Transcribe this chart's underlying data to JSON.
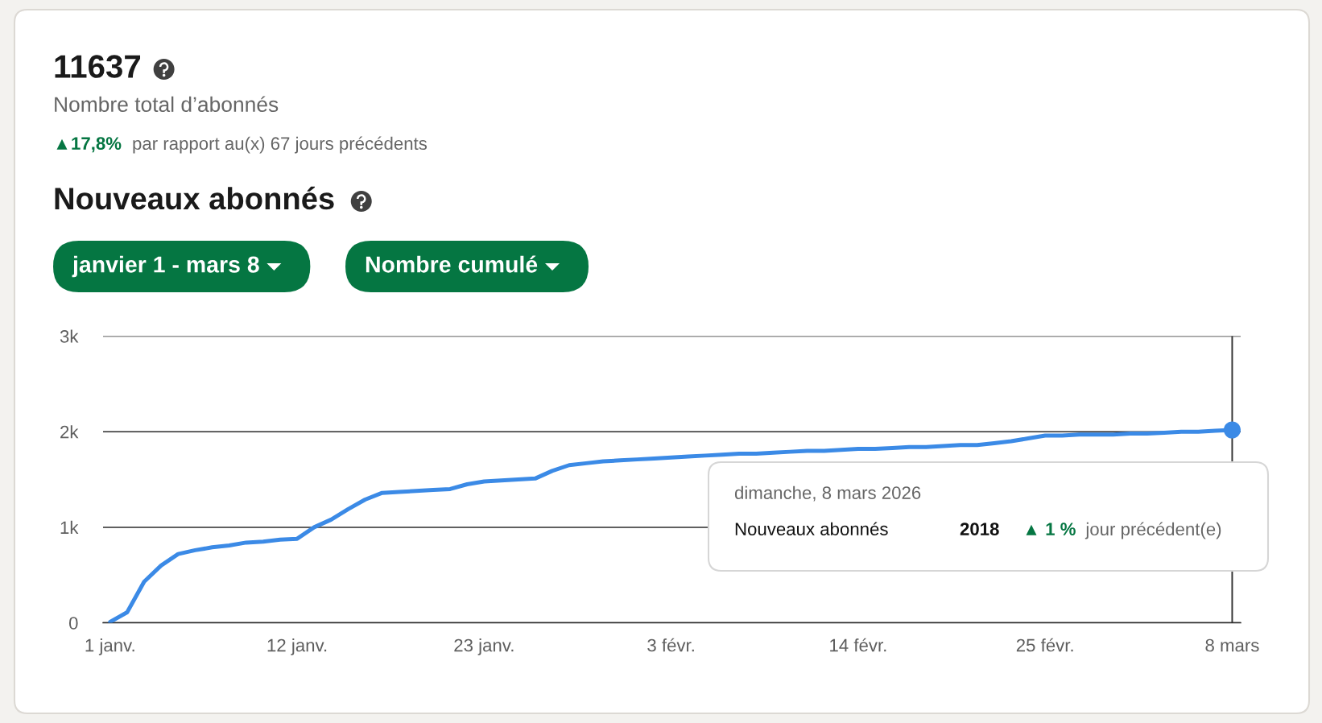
{
  "chart_data": {
    "type": "line",
    "title": "Nouveaux abonnés",
    "annotations": [
      "11637",
      "Nombre total d’abonnés",
      "▲17,8%",
      "par rapport au(x) 67 jours précédents",
      "janvier 1 - mars 8",
      "Nombre cumulé",
      "dimanche, 8 mars 2026",
      "Nouveaux abonnés",
      "2018",
      "▲ 1 %",
      "jour précédent(e)"
    ],
    "x": [
      "2026-01-01",
      "2026-01-02",
      "2026-01-03",
      "2026-01-04",
      "2026-01-05",
      "2026-01-06",
      "2026-01-07",
      "2026-01-08",
      "2026-01-09",
      "2026-01-10",
      "2026-01-11",
      "2026-01-12",
      "2026-01-13",
      "2026-01-14",
      "2026-01-15",
      "2026-01-16",
      "2026-01-17",
      "2026-01-18",
      "2026-01-19",
      "2026-01-20",
      "2026-01-21",
      "2026-01-22",
      "2026-01-23",
      "2026-01-24",
      "2026-01-25",
      "2026-01-26",
      "2026-01-27",
      "2026-01-28",
      "2026-01-29",
      "2026-01-30",
      "2026-01-31",
      "2026-02-01",
      "2026-02-02",
      "2026-02-03",
      "2026-02-04",
      "2026-02-05",
      "2026-02-06",
      "2026-02-07",
      "2026-02-08",
      "2026-02-09",
      "2026-02-10",
      "2026-02-11",
      "2026-02-12",
      "2026-02-13",
      "2026-02-14",
      "2026-02-15",
      "2026-02-16",
      "2026-02-17",
      "2026-02-18",
      "2026-02-19",
      "2026-02-20",
      "2026-02-21",
      "2026-02-22",
      "2026-02-23",
      "2026-02-24",
      "2026-02-25",
      "2026-02-26",
      "2026-02-27",
      "2026-02-28",
      "2026-03-01",
      "2026-03-02",
      "2026-03-03",
      "2026-03-04",
      "2026-03-05",
      "2026-03-06",
      "2026-03-07",
      "2026-03-08"
    ],
    "series": [
      {
        "color": "#3b8ae6",
        "values": [
          10,
          110,
          430,
          600,
          720,
          760,
          790,
          810,
          840,
          850,
          870,
          880,
          1000,
          1080,
          1190,
          1290,
          1360,
          1370,
          1380,
          1390,
          1400,
          1450,
          1480,
          1490,
          1500,
          1510,
          1590,
          1650,
          1670,
          1690,
          1700,
          1710,
          1720,
          1730,
          1740,
          1750,
          1760,
          1770,
          1770,
          1780,
          1790,
          1800,
          1800,
          1810,
          1820,
          1820,
          1830,
          1840,
          1840,
          1850,
          1860,
          1860,
          1880,
          1900,
          1930,
          1960,
          1960,
          1970,
          1970,
          1970,
          1980,
          1980,
          1990,
          2000,
          2000,
          2010,
          2018
        ]
      },
      {
        "type": "scatter",
        "x": [
          "2026-03-08"
        ],
        "values": [
          2018
        ],
        "color": "#3b8ae6",
        "marker": "circle"
      }
    ],
    "xlim": [
      "2025-12-31T14:00",
      "2026-03-08T12:00"
    ],
    "xticks": [
      {
        "value": "2026-01-01",
        "label": "1 janv."
      },
      {
        "value": "2026-01-12",
        "label": "12 janv."
      },
      {
        "value": "2026-01-23",
        "label": "23 janv."
      },
      {
        "value": "2026-02-03",
        "label": "3 févr."
      },
      {
        "value": "2026-02-14",
        "label": "14 févr."
      },
      {
        "value": "2026-02-25",
        "label": "25 févr."
      },
      {
        "value": "2026-03-08",
        "label": "8 mars"
      }
    ],
    "ylim": [
      0,
      3000
    ],
    "yticks": [
      0,
      {
        "value": 1000,
        "label": "1k"
      },
      {
        "value": 2000,
        "label": "2k"
      },
      {
        "value": 3000,
        "label": "3k"
      }
    ],
    "grid": "y",
    "ref_lines": [
      {
        "axis": "x",
        "value": "2026-03-08",
        "color": "#333333"
      }
    ]
  }
}
